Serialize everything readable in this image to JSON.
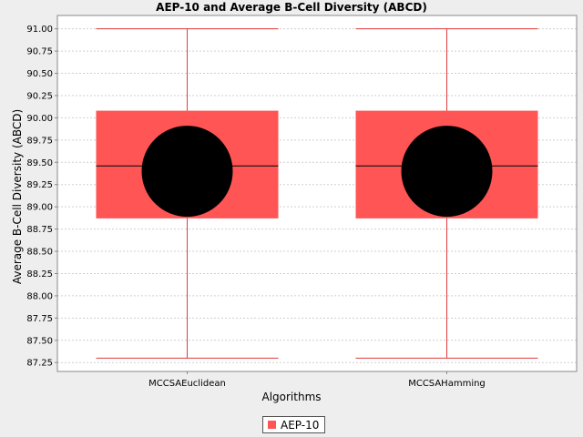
{
  "colors": {
    "box_fill": "#ff5555",
    "whisker": "#e03c3c",
    "median": "#000000",
    "mean_marker": "#000000",
    "grid": "#cfcfcf",
    "plot_background": "#ffffff",
    "axis": "#888888"
  },
  "legend": {
    "label": "AEP-10"
  },
  "chart_data": {
    "type": "box",
    "title": "AEP-10 and Average B-Cell Diversity (ABCD)",
    "xlabel": "Algorithms",
    "ylabel": "Average B-Cell Diversity (ABCD)",
    "ylim": [
      87.15,
      91.15
    ],
    "yticks": [
      "87.25",
      "87.50",
      "87.75",
      "88.00",
      "88.25",
      "88.50",
      "88.75",
      "89.00",
      "89.25",
      "89.50",
      "89.75",
      "90.00",
      "90.25",
      "90.50",
      "90.75",
      "91.00"
    ],
    "grid": "horizontal dashed",
    "legend_position": "bottom-center",
    "categories": [
      "MCCSAEuclidean",
      "MCCSAHamming"
    ],
    "series": [
      {
        "name": "AEP-10",
        "boxes": [
          {
            "min": 87.3,
            "q1": 88.87,
            "median": 89.46,
            "q3": 90.08,
            "max": 91.0,
            "mean": 89.4
          },
          {
            "min": 87.3,
            "q1": 88.87,
            "median": 89.46,
            "q3": 90.08,
            "max": 91.0,
            "mean": 89.4
          }
        ]
      }
    ]
  }
}
